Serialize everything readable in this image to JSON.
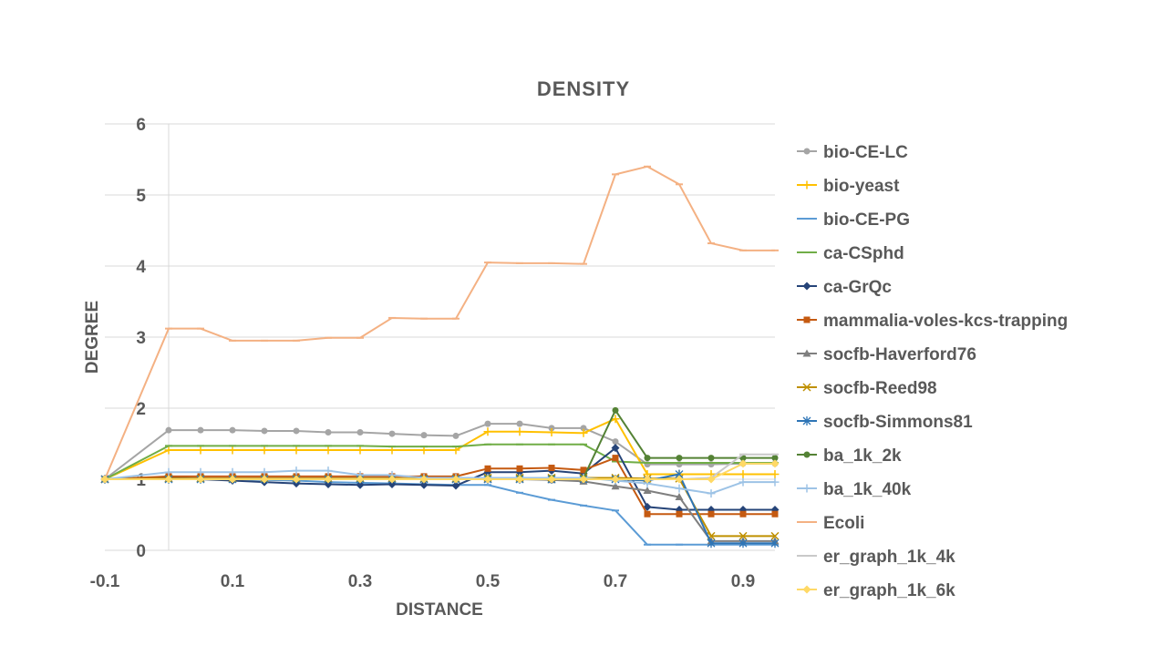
{
  "chart_data": {
    "type": "line",
    "title": "DENSITY",
    "xlabel": "DISTANCE",
    "ylabel": "DEGREE",
    "x_range": [
      -0.1,
      0.95
    ],
    "ylim": [
      0,
      6
    ],
    "x_tick_labels": [
      "-0.1",
      "0.1",
      "0.3",
      "0.5",
      "0.7",
      "0.9"
    ],
    "x_tick_values": [
      -0.1,
      0.1,
      0.3,
      0.5,
      0.7,
      0.9
    ],
    "y_ticks": [
      0,
      1,
      2,
      3,
      4,
      5,
      6
    ],
    "grid": "horizontal",
    "legend_position": "right",
    "x": [
      -0.1,
      0,
      0.05,
      0.1,
      0.15,
      0.2,
      0.25,
      0.3,
      0.35,
      0.4,
      0.45,
      0.5,
      0.55,
      0.6,
      0.65,
      0.7,
      0.75,
      0.8,
      0.85,
      0.9,
      0.95
    ],
    "series": [
      {
        "name": "bio-CE-LC",
        "color": "#A5A5A5",
        "marker": "circle",
        "values": [
          1,
          1.69,
          1.69,
          1.69,
          1.68,
          1.68,
          1.66,
          1.66,
          1.64,
          1.62,
          1.61,
          1.78,
          1.78,
          1.72,
          1.72,
          1.53,
          1.21,
          1.21,
          1.21,
          1.22,
          1.22
        ]
      },
      {
        "name": "bio-yeast",
        "color": "#FFC000",
        "marker": "plus",
        "values": [
          1,
          1.41,
          1.41,
          1.41,
          1.41,
          1.41,
          1.41,
          1.41,
          1.41,
          1.41,
          1.41,
          1.67,
          1.67,
          1.66,
          1.65,
          1.85,
          1.07,
          1.07,
          1.07,
          1.07,
          1.07
        ]
      },
      {
        "name": "bio-CE-PG",
        "color": "#5B9BD5",
        "marker": "dash",
        "values": [
          1,
          1.03,
          1.01,
          1.0,
          0.99,
          0.98,
          0.96,
          0.95,
          0.94,
          0.93,
          0.92,
          0.92,
          0.81,
          0.71,
          0.63,
          0.56,
          0.08,
          0.08,
          0.08,
          0.08,
          0.08
        ]
      },
      {
        "name": "ca-CSphd",
        "color": "#70AD47",
        "marker": "dash",
        "values": [
          1,
          1.47,
          1.47,
          1.47,
          1.47,
          1.47,
          1.47,
          1.47,
          1.46,
          1.46,
          1.46,
          1.49,
          1.49,
          1.49,
          1.49,
          1.25,
          1.23,
          1.23,
          1.23,
          1.23,
          1.23
        ]
      },
      {
        "name": "ca-GrQc",
        "color": "#264478",
        "marker": "diamond",
        "values": [
          1,
          1.02,
          1.0,
          0.98,
          0.96,
          0.94,
          0.93,
          0.92,
          0.93,
          0.92,
          0.91,
          1.1,
          1.1,
          1.12,
          1.08,
          1.44,
          0.61,
          0.57,
          0.57,
          0.57,
          0.57
        ]
      },
      {
        "name": "mammalia-voles-kcs-trapping",
        "color": "#C55A11",
        "marker": "square",
        "values": [
          1,
          1.04,
          1.04,
          1.04,
          1.04,
          1.04,
          1.04,
          1.04,
          1.04,
          1.04,
          1.04,
          1.15,
          1.15,
          1.16,
          1.13,
          1.3,
          0.51,
          0.51,
          0.51,
          0.51,
          0.51
        ]
      },
      {
        "name": "socfb-Haverford76",
        "color": "#7F7F7F",
        "marker": "triangle",
        "values": [
          1,
          1.01,
          1.01,
          1.01,
          1.01,
          1.01,
          1.01,
          1.01,
          1.01,
          1.0,
          1.0,
          1.0,
          1.0,
          0.99,
          0.97,
          0.9,
          0.84,
          0.75,
          0.13,
          0.13,
          0.13
        ]
      },
      {
        "name": "socfb-Reed98",
        "color": "#BF9000",
        "marker": "x",
        "values": [
          1,
          1.01,
          1.01,
          1.01,
          1.01,
          1.01,
          1.01,
          1.01,
          1.01,
          1.01,
          1.01,
          1.02,
          1.02,
          1.02,
          1.02,
          1.02,
          1.01,
          1.01,
          0.2,
          0.2,
          0.2
        ]
      },
      {
        "name": "socfb-Simmons81",
        "color": "#2E75B6",
        "marker": "star",
        "values": [
          1,
          1.0,
          1.0,
          1.0,
          1.0,
          1.0,
          1.0,
          1.0,
          1.0,
          1.0,
          1.0,
          1.0,
          1.0,
          1.0,
          1.0,
          1.0,
          0.98,
          1.07,
          0.1,
          0.1,
          0.1
        ]
      },
      {
        "name": "ba_1k_2k",
        "color": "#548235",
        "marker": "circle",
        "values": [
          1,
          1.0,
          1.0,
          1.0,
          1.0,
          1.0,
          1.0,
          1.0,
          1.0,
          1.0,
          1.0,
          1.02,
          1.02,
          1.02,
          1.02,
          1.97,
          1.3,
          1.3,
          1.3,
          1.3,
          1.3
        ]
      },
      {
        "name": "ba_1k_40k",
        "color": "#9DC3E6",
        "marker": "plus",
        "values": [
          1,
          1.1,
          1.1,
          1.1,
          1.1,
          1.12,
          1.12,
          1.06,
          1.06,
          1.02,
          1.02,
          1.02,
          1.02,
          1.02,
          1.02,
          0.98,
          0.94,
          0.87,
          0.8,
          0.96,
          0.96
        ]
      },
      {
        "name": "Ecoli",
        "color": "#F4B183",
        "marker": "dash",
        "values": [
          1,
          3.12,
          3.12,
          2.95,
          2.95,
          2.95,
          2.99,
          2.99,
          3.27,
          3.26,
          3.26,
          4.05,
          4.04,
          4.04,
          4.03,
          5.29,
          5.4,
          5.15,
          4.32,
          4.22,
          4.22
        ]
      },
      {
        "name": "er_graph_1k_4k",
        "color": "#C9C9C9",
        "marker": "dash",
        "values": [
          1,
          1.0,
          1.0,
          1.0,
          1.0,
          1.0,
          1.0,
          1.0,
          1.0,
          1.0,
          1.0,
          1.0,
          1.0,
          1.0,
          1.0,
          1.0,
          1.0,
          1.0,
          1.02,
          1.35,
          1.35
        ]
      },
      {
        "name": "er_graph_1k_6k",
        "color": "#FFD966",
        "marker": "diamond",
        "values": [
          1,
          1.0,
          1.0,
          1.0,
          1.0,
          1.0,
          1.0,
          1.0,
          1.0,
          1.0,
          1.0,
          1.0,
          1.0,
          1.0,
          1.0,
          1.0,
          1.0,
          1.0,
          1.0,
          1.22,
          1.22
        ]
      }
    ]
  }
}
